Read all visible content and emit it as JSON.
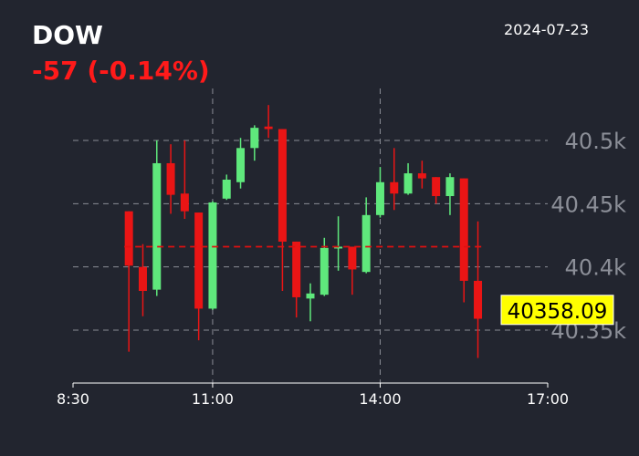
{
  "header": {
    "ticker": "DOW",
    "change": "-57 (-0.14%)",
    "date": "2024-07-23"
  },
  "colors": {
    "background": "#22252f",
    "up": "#5fe87c",
    "down": "#ea1515",
    "change_text": "#ff1a1a",
    "grid": "#8a8d96",
    "reference_line": "#e01010",
    "last_price_box": "#ffff00"
  },
  "chart_data": {
    "type": "candlestick",
    "title": "",
    "xlabel": "",
    "ylabel": "",
    "x_ticks": [
      "8:30",
      "11:00",
      "14:00",
      "17:00"
    ],
    "y_ticks": [
      "40.35k",
      "40.4k",
      "40.45k",
      "40.5k"
    ],
    "ylim": [
      40315,
      40545
    ],
    "grid": {
      "horizontal": "dashed",
      "vertical": "dashed at 11:00 and 14:00"
    },
    "reference_line": 40416,
    "last_price": "40358.09",
    "interval_minutes": 15,
    "candles": [
      {
        "time": "9:30",
        "open": 40444,
        "high": 40444,
        "low": 40333,
        "close": 40401
      },
      {
        "time": "9:45",
        "open": 40400,
        "high": 40418,
        "low": 40361,
        "close": 40381
      },
      {
        "time": "10:00",
        "open": 40382,
        "high": 40500,
        "low": 40377,
        "close": 40482
      },
      {
        "time": "10:15",
        "open": 40482,
        "high": 40497,
        "low": 40442,
        "close": 40457
      },
      {
        "time": "10:30",
        "open": 40458,
        "high": 40500,
        "low": 40438,
        "close": 40444
      },
      {
        "time": "10:45",
        "open": 40443,
        "high": 40443,
        "low": 40342,
        "close": 40367
      },
      {
        "time": "11:00",
        "open": 40367,
        "high": 40452,
        "low": 40366,
        "close": 40451
      },
      {
        "time": "11:15",
        "open": 40454,
        "high": 40473,
        "low": 40453,
        "close": 40469
      },
      {
        "time": "11:30",
        "open": 40467,
        "high": 40502,
        "low": 40462,
        "close": 40494
      },
      {
        "time": "11:45",
        "open": 40494,
        "high": 40512,
        "low": 40484,
        "close": 40510
      },
      {
        "time": "12:00",
        "open": 40511,
        "high": 40528,
        "low": 40502,
        "close": 40509
      },
      {
        "time": "12:15",
        "open": 40509,
        "high": 40509,
        "low": 40381,
        "close": 40420
      },
      {
        "time": "12:30",
        "open": 40420,
        "high": 40420,
        "low": 40360,
        "close": 40376
      },
      {
        "time": "12:45",
        "open": 40375,
        "high": 40387,
        "low": 40357,
        "close": 40379
      },
      {
        "time": "13:00",
        "open": 40378,
        "high": 40423,
        "low": 40377,
        "close": 40415
      },
      {
        "time": "13:15",
        "open": 40415,
        "high": 40440,
        "low": 40397,
        "close": 40416
      },
      {
        "time": "13:30",
        "open": 40416,
        "high": 40416,
        "low": 40378,
        "close": 40398
      },
      {
        "time": "13:45",
        "open": 40396,
        "high": 40455,
        "low": 40395,
        "close": 40441
      },
      {
        "time": "14:00",
        "open": 40441,
        "high": 40479,
        "low": 40439,
        "close": 40467
      },
      {
        "time": "14:15",
        "open": 40467,
        "high": 40494,
        "low": 40445,
        "close": 40458
      },
      {
        "time": "14:30",
        "open": 40458,
        "high": 40482,
        "low": 40457,
        "close": 40474
      },
      {
        "time": "14:45",
        "open": 40474,
        "high": 40484,
        "low": 40462,
        "close": 40470
      },
      {
        "time": "15:00",
        "open": 40471,
        "high": 40471,
        "low": 40450,
        "close": 40456
      },
      {
        "time": "15:15",
        "open": 40456,
        "high": 40474,
        "low": 40441,
        "close": 40471
      },
      {
        "time": "15:30",
        "open": 40470,
        "high": 40470,
        "low": 40372,
        "close": 40389
      },
      {
        "time": "15:45",
        "open": 40389,
        "high": 40436,
        "low": 40328,
        "close": 40359
      }
    ]
  }
}
